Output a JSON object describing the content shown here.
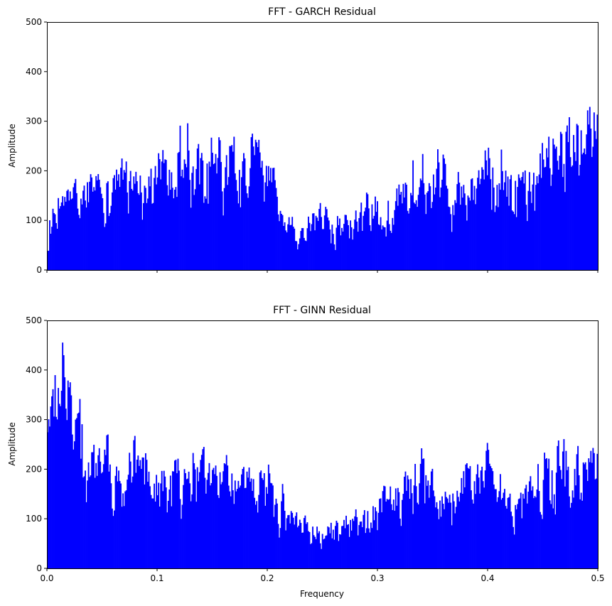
{
  "chart_data": [
    {
      "type": "bar",
      "title": "FFT - GARCH Residual",
      "xlabel": "",
      "ylabel": "Amplitude",
      "xlim": [
        0,
        0.5
      ],
      "ylim": [
        0,
        500
      ],
      "xticks": [
        "0.0",
        "0.1",
        "0.2",
        "0.3",
        "0.4",
        "0.5"
      ],
      "yticks": [
        "0",
        "100",
        "200",
        "300",
        "400",
        "500"
      ],
      "show_xtick_labels": false,
      "color": "#0000ff",
      "grid": false,
      "spectrum_profile": {
        "freq": [
          0.0,
          0.005,
          0.01,
          0.02,
          0.03,
          0.04,
          0.05,
          0.06,
          0.07,
          0.08,
          0.09,
          0.1,
          0.11,
          0.12,
          0.13,
          0.14,
          0.15,
          0.16,
          0.17,
          0.18,
          0.19,
          0.2,
          0.21,
          0.22,
          0.23,
          0.24,
          0.25,
          0.26,
          0.27,
          0.28,
          0.29,
          0.3,
          0.31,
          0.32,
          0.33,
          0.34,
          0.35,
          0.36,
          0.37,
          0.38,
          0.39,
          0.4,
          0.41,
          0.42,
          0.43,
          0.44,
          0.45,
          0.46,
          0.47,
          0.48,
          0.49,
          0.5
        ],
        "amplitude": [
          90,
          120,
          135,
          150,
          160,
          165,
          175,
          190,
          185,
          200,
          185,
          200,
          230,
          245,
          250,
          240,
          245,
          230,
          200,
          210,
          230,
          220,
          120,
          90,
          80,
          120,
          110,
          100,
          100,
          110,
          125,
          150,
          135,
          150,
          190,
          220,
          210,
          190,
          160,
          170,
          185,
          230,
          220,
          175,
          165,
          190,
          245,
          250,
          290,
          300,
          300,
          290
        ]
      }
    },
    {
      "type": "bar",
      "title": "FFT - GINN Residual",
      "xlabel": "Frequency",
      "ylabel": "Amplitude",
      "xlim": [
        0,
        0.5
      ],
      "ylim": [
        0,
        500
      ],
      "xticks": [
        "0.0",
        "0.1",
        "0.2",
        "0.3",
        "0.4",
        "0.5"
      ],
      "yticks": [
        "0",
        "100",
        "200",
        "300",
        "400",
        "500"
      ],
      "show_xtick_labels": true,
      "color": "#0000ff",
      "grid": false,
      "spectrum_profile": {
        "freq": [
          0.0,
          0.005,
          0.01,
          0.015,
          0.02,
          0.025,
          0.03,
          0.04,
          0.05,
          0.06,
          0.07,
          0.08,
          0.09,
          0.1,
          0.11,
          0.12,
          0.13,
          0.14,
          0.15,
          0.16,
          0.17,
          0.18,
          0.19,
          0.2,
          0.21,
          0.22,
          0.23,
          0.24,
          0.25,
          0.26,
          0.27,
          0.28,
          0.29,
          0.3,
          0.31,
          0.32,
          0.33,
          0.34,
          0.35,
          0.36,
          0.37,
          0.38,
          0.39,
          0.4,
          0.41,
          0.42,
          0.43,
          0.44,
          0.45,
          0.46,
          0.47,
          0.48,
          0.49,
          0.5
        ],
        "amplitude": [
          280,
          340,
          370,
          380,
          360,
          320,
          280,
          220,
          200,
          210,
          225,
          215,
          190,
          185,
          195,
          200,
          200,
          205,
          195,
          185,
          175,
          170,
          180,
          175,
          150,
          115,
          100,
          90,
          85,
          90,
          100,
          110,
          120,
          130,
          150,
          160,
          175,
          195,
          190,
          175,
          160,
          170,
          190,
          215,
          195,
          160,
          150,
          175,
          195,
          220,
          240,
          235,
          230,
          225
        ]
      }
    }
  ]
}
